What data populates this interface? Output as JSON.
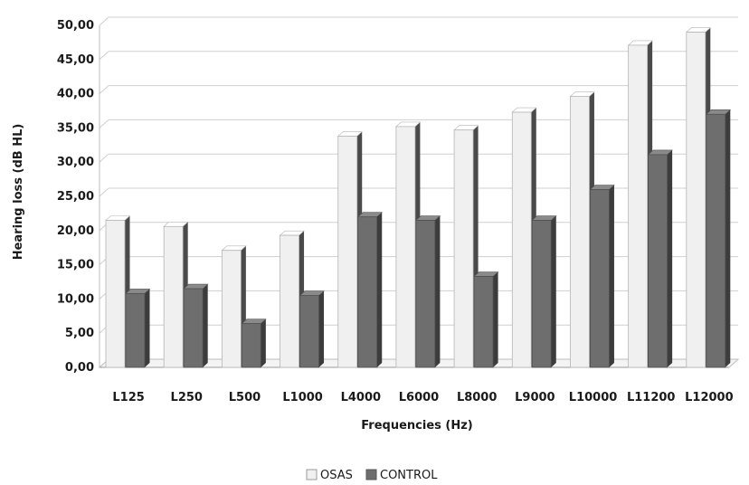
{
  "chart_data": {
    "type": "bar",
    "title": "",
    "xlabel": "Frequencies (Hz)",
    "ylabel": "Hearing loss (dB HL)",
    "ylim": [
      0,
      50
    ],
    "yticks": [
      "0,00",
      "5,00",
      "10,00",
      "15,00",
      "20,00",
      "25,00",
      "30,00",
      "35,00",
      "40,00",
      "45,00",
      "50,00"
    ],
    "grid": true,
    "legend_position": "bottom",
    "categories": [
      "L125",
      "L250",
      "L500",
      "L1000",
      "L4000",
      "L6000",
      "L8000",
      "L9000",
      "L10000",
      "L11200",
      "L12000"
    ],
    "series": [
      {
        "name": "OSAS",
        "color": "#f0f0f0",
        "values": [
          21.5,
          20.6,
          17.1,
          19.3,
          33.8,
          35.2,
          34.7,
          37.3,
          39.6,
          47.1,
          49.0
        ]
      },
      {
        "name": "CONTROL",
        "color": "#6e6e6e",
        "values": [
          10.8,
          11.5,
          6.4,
          10.5,
          22.0,
          21.5,
          13.3,
          21.5,
          26.0,
          31.1,
          37.0
        ]
      }
    ]
  }
}
